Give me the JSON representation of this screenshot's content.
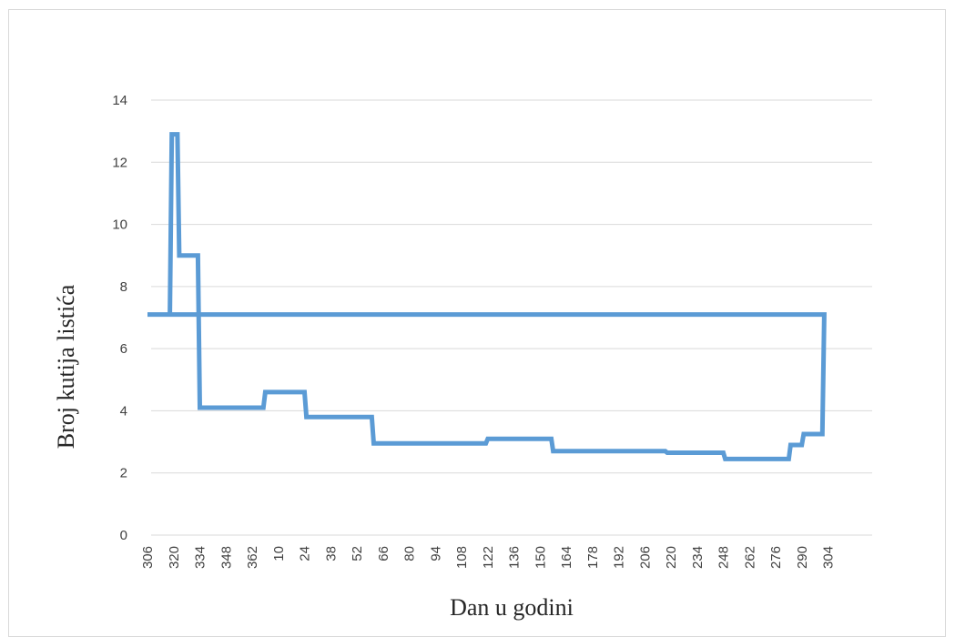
{
  "chart_data": {
    "type": "line",
    "step": true,
    "xlabel": "Dan u godini",
    "ylabel": "Broj kutija listića",
    "ylim": [
      0,
      14
    ],
    "yticks": [
      0,
      2,
      4,
      6,
      8,
      10,
      12,
      14
    ],
    "grid": true,
    "legend": "none",
    "line_color": "#5b9bd5",
    "grid_color": "#d9d9d9",
    "x_categories": [
      "306",
      "320",
      "334",
      "348",
      "362",
      "10",
      "24",
      "38",
      "52",
      "66",
      "80",
      "94",
      "108",
      "122",
      "136",
      "150",
      "164",
      "178",
      "192",
      "206",
      "220",
      "234",
      "248",
      "262",
      "276",
      "290",
      "304"
    ],
    "series": [
      {
        "points": [
          {
            "x": 306,
            "y": 7.1
          },
          {
            "x": 318,
            "y": 7.1
          },
          {
            "x": 319,
            "y": 12.9
          },
          {
            "x": 322,
            "y": 12.9
          },
          {
            "x": 323,
            "y": 9.0
          },
          {
            "x": 333,
            "y": 9.0
          },
          {
            "x": 334,
            "y": 4.1
          },
          {
            "x": 3,
            "y": 4.1
          },
          {
            "x": 4,
            "y": 4.6
          },
          {
            "x": 25,
            "y": 4.6
          },
          {
            "x": 26,
            "y": 3.8
          },
          {
            "x": 61,
            "y": 3.8
          },
          {
            "x": 62,
            "y": 2.95
          },
          {
            "x": 122,
            "y": 2.95
          },
          {
            "x": 123,
            "y": 3.1
          },
          {
            "x": 157,
            "y": 3.1
          },
          {
            "x": 158,
            "y": 2.7
          },
          {
            "x": 218,
            "y": 2.7
          },
          {
            "x": 219,
            "y": 2.65
          },
          {
            "x": 249,
            "y": 2.65
          },
          {
            "x": 250,
            "y": 2.45
          },
          {
            "x": 284,
            "y": 2.45
          },
          {
            "x": 285,
            "y": 2.9
          },
          {
            "x": 291,
            "y": 2.9
          },
          {
            "x": 292,
            "y": 3.25
          },
          {
            "x": 302,
            "y": 3.25
          },
          {
            "x": 303,
            "y": 7.1
          },
          {
            "x": 306,
            "y": 7.1
          }
        ]
      }
    ]
  }
}
